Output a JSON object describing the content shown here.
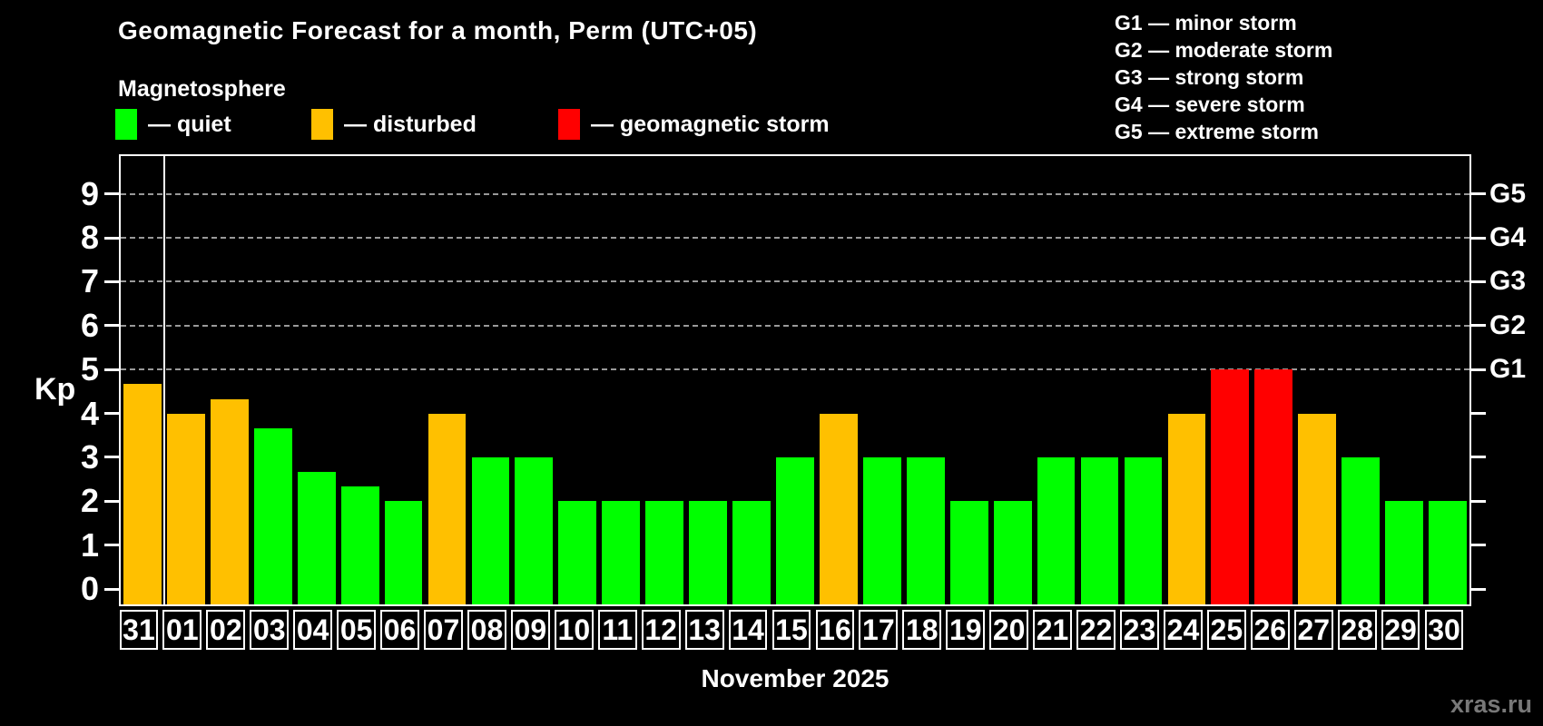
{
  "title": "Geomagnetic Forecast for a month, Perm (UTC+05)",
  "subtitle": "Magnetosphere",
  "legend": {
    "items": [
      {
        "label": "— quiet",
        "status": "quiet"
      },
      {
        "label": "— disturbed",
        "status": "disturbed"
      },
      {
        "label": "— geomagnetic storm",
        "status": "storm"
      }
    ]
  },
  "g_legend": {
    "items": [
      "G1 — minor storm",
      "G2 — moderate storm",
      "G3 — strong storm",
      "G4 — severe storm",
      "G5 — extreme storm"
    ]
  },
  "colors": {
    "quiet": "#00ff00",
    "disturbed": "#ffc000",
    "storm": "#ff0000",
    "background": "#000000",
    "text": "#ffffff",
    "grid": "#999999",
    "frame": "#ffffff",
    "watermark": "#787878"
  },
  "watermark": "xras.ru",
  "chart_data": {
    "type": "bar",
    "title": "Geomagnetic Forecast for a month, Perm (UTC+05)",
    "ylabel": "Kp",
    "xlabel": "November 2025",
    "ylim": [
      -0.35,
      9.86
    ],
    "y_ticks": [
      0,
      1,
      2,
      3,
      4,
      5,
      6,
      7,
      8,
      9
    ],
    "grid": "dashed horizontal lines at storm levels G1–G5 (Kp 5–9)",
    "legend_position": "top-left",
    "right_axis": [
      {
        "value": 5,
        "label": "G1"
      },
      {
        "value": 6,
        "label": "G2"
      },
      {
        "value": 7,
        "label": "G3"
      },
      {
        "value": 8,
        "label": "G4"
      },
      {
        "value": 9,
        "label": "G5"
      }
    ],
    "separator_after_index": 0,
    "days": [
      {
        "day": "31",
        "kp": 4.67,
        "status": "disturbed"
      },
      {
        "day": "01",
        "kp": 4,
        "status": "disturbed"
      },
      {
        "day": "02",
        "kp": 4.33,
        "status": "disturbed"
      },
      {
        "day": "03",
        "kp": 3.67,
        "status": "quiet"
      },
      {
        "day": "04",
        "kp": 2.67,
        "status": "quiet"
      },
      {
        "day": "05",
        "kp": 2.33,
        "status": "quiet"
      },
      {
        "day": "06",
        "kp": 2,
        "status": "quiet"
      },
      {
        "day": "07",
        "kp": 4,
        "status": "disturbed"
      },
      {
        "day": "08",
        "kp": 3,
        "status": "quiet"
      },
      {
        "day": "09",
        "kp": 3,
        "status": "quiet"
      },
      {
        "day": "10",
        "kp": 2,
        "status": "quiet"
      },
      {
        "day": "11",
        "kp": 2,
        "status": "quiet"
      },
      {
        "day": "12",
        "kp": 2,
        "status": "quiet"
      },
      {
        "day": "13",
        "kp": 2,
        "status": "quiet"
      },
      {
        "day": "14",
        "kp": 2,
        "status": "quiet"
      },
      {
        "day": "15",
        "kp": 3,
        "status": "quiet"
      },
      {
        "day": "16",
        "kp": 4,
        "status": "disturbed"
      },
      {
        "day": "17",
        "kp": 3,
        "status": "quiet"
      },
      {
        "day": "18",
        "kp": 3,
        "status": "quiet"
      },
      {
        "day": "19",
        "kp": 2,
        "status": "quiet"
      },
      {
        "day": "20",
        "kp": 2,
        "status": "quiet"
      },
      {
        "day": "21",
        "kp": 3,
        "status": "quiet"
      },
      {
        "day": "22",
        "kp": 3,
        "status": "quiet"
      },
      {
        "day": "23",
        "kp": 3,
        "status": "quiet"
      },
      {
        "day": "24",
        "kp": 4,
        "status": "disturbed"
      },
      {
        "day": "25",
        "kp": 5,
        "status": "storm"
      },
      {
        "day": "26",
        "kp": 5,
        "status": "storm"
      },
      {
        "day": "27",
        "kp": 4,
        "status": "disturbed"
      },
      {
        "day": "28",
        "kp": 3,
        "status": "quiet"
      },
      {
        "day": "29",
        "kp": 2,
        "status": "quiet"
      },
      {
        "day": "30",
        "kp": 2,
        "status": "quiet"
      }
    ]
  }
}
